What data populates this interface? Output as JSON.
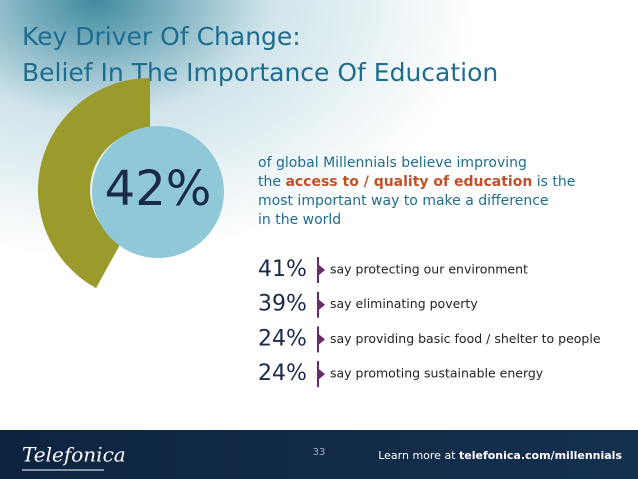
{
  "title": {
    "line1": "Key Driver Of Change:",
    "line2": "Belief In The Importance Of Education"
  },
  "headline": {
    "value": 42,
    "label": "42%",
    "arc_color": "#9b9a2c",
    "circle_color": "#8fc8d6"
  },
  "description": {
    "line1": "of global Millennials believe improving",
    "line2_before": "the",
    "line2_highlight": "access to / quality of education",
    "line2_after": "is the",
    "line3": "most important way to make a difference",
    "line4": "in the world"
  },
  "items": [
    {
      "percent": "41%",
      "text": "say protecting our environment"
    },
    {
      "percent": "39%",
      "text": "say eliminating poverty"
    },
    {
      "percent": "24%",
      "text": "say providing basic food / shelter to people"
    },
    {
      "percent": "24%",
      "text": "say promoting sustainable energy"
    }
  ],
  "footer": {
    "brand": "Telefonica",
    "page": "33",
    "learn_prefix": "Learn more at",
    "learn_link": "telefonica.com/millennials"
  }
}
